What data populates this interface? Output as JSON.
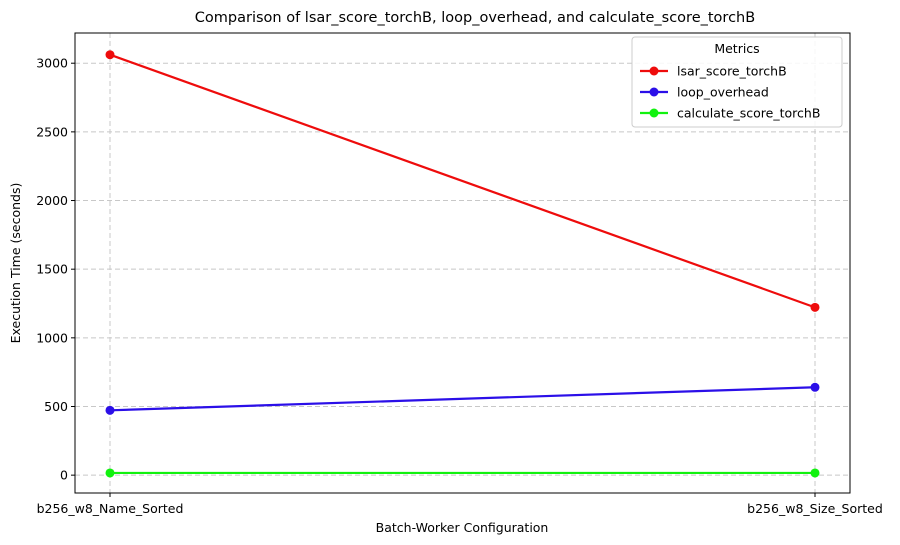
{
  "chart_data": {
    "type": "line",
    "title": "Comparison of lsar_score_torchB, loop_overhead, and calculate_score_torchB",
    "xlabel": "Batch-Worker Configuration",
    "ylabel": "Execution Time (seconds)",
    "categories": [
      "b256_w8_Name_Sorted",
      "b256_w8_Size_Sorted"
    ],
    "ylim": [
      -130,
      3220
    ],
    "yticks": [
      0,
      500,
      1000,
      1500,
      2000,
      2500,
      3000
    ],
    "grid": true,
    "legend": {
      "title": "Metrics",
      "placement": "top-right"
    },
    "series": [
      {
        "name": "lsar_score_torchB",
        "values": [
          3062,
          1222
        ],
        "color": "#ee0c0c"
      },
      {
        "name": "loop_overhead",
        "values": [
          472,
          640
        ],
        "color": "#2b0fe8"
      },
      {
        "name": "calculate_score_torchB",
        "values": [
          16,
          16
        ],
        "color": "#11f20f"
      }
    ]
  }
}
